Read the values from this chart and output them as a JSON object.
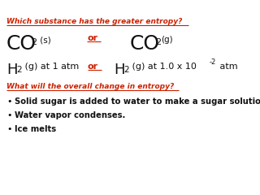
{
  "bg_color": "#ffffff",
  "red_color": "#cc2200",
  "black_color": "#111111",
  "title1": "Which substance has the greater entropy?",
  "title2": "What will the overall change in entropy?",
  "bullets": [
    "Solid sugar is added to water to make a sugar solution.",
    "Water vapor condenses.",
    "Ice melts"
  ],
  "figsize": [
    3.2,
    2.4
  ],
  "dpi": 100
}
